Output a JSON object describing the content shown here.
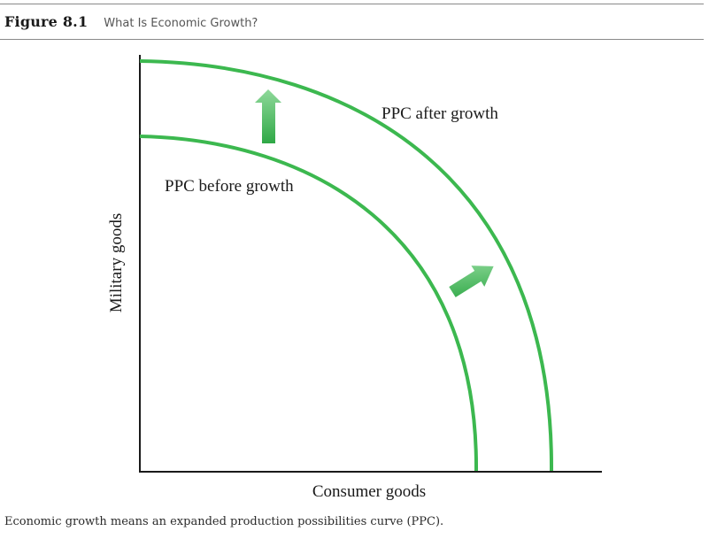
{
  "header": {
    "figure_label": "Figure 8.1",
    "figure_title": "What Is Economic Growth?"
  },
  "diagram": {
    "curve_before_label": "PPC before growth",
    "curve_after_label": "PPC after growth",
    "x_axis_label": "Consumer goods",
    "y_axis_label": "Military goods",
    "curve_color": "#3cb84f",
    "arrow_color_dark": "#2fa846",
    "arrow_color_light": "#8fd99a",
    "axis_color": "#1a1a1a"
  },
  "caption": "Economic growth means an expanded production possibilities curve (PPC)."
}
